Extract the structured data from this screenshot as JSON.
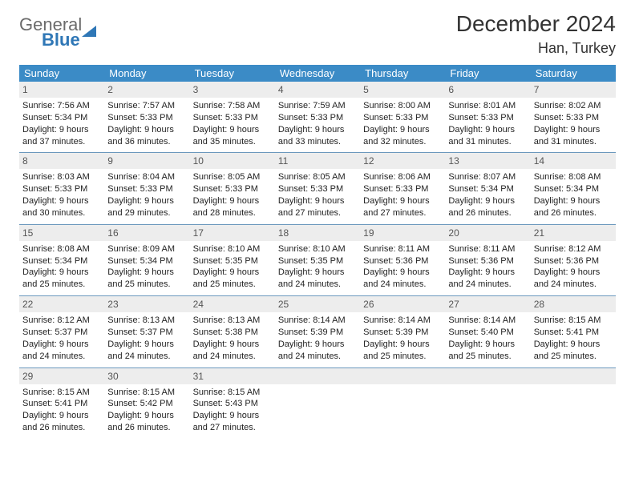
{
  "logo": {
    "line1": "General",
    "line2": "Blue"
  },
  "title": "December 2024",
  "location": "Han, Turkey",
  "colors": {
    "header_bg": "#3b8bc6",
    "header_text": "#ffffff",
    "daynum_bg": "#ededed",
    "daynum_text": "#555555",
    "body_text": "#232323",
    "rule": "#6a98bd",
    "logo_gray": "#6b6b6b",
    "logo_blue": "#2f77b6"
  },
  "dow": [
    "Sunday",
    "Monday",
    "Tuesday",
    "Wednesday",
    "Thursday",
    "Friday",
    "Saturday"
  ],
  "weeks": [
    [
      {
        "n": "1",
        "sr": "Sunrise: 7:56 AM",
        "ss": "Sunset: 5:34 PM",
        "d1": "Daylight: 9 hours",
        "d2": "and 37 minutes."
      },
      {
        "n": "2",
        "sr": "Sunrise: 7:57 AM",
        "ss": "Sunset: 5:33 PM",
        "d1": "Daylight: 9 hours",
        "d2": "and 36 minutes."
      },
      {
        "n": "3",
        "sr": "Sunrise: 7:58 AM",
        "ss": "Sunset: 5:33 PM",
        "d1": "Daylight: 9 hours",
        "d2": "and 35 minutes."
      },
      {
        "n": "4",
        "sr": "Sunrise: 7:59 AM",
        "ss": "Sunset: 5:33 PM",
        "d1": "Daylight: 9 hours",
        "d2": "and 33 minutes."
      },
      {
        "n": "5",
        "sr": "Sunrise: 8:00 AM",
        "ss": "Sunset: 5:33 PM",
        "d1": "Daylight: 9 hours",
        "d2": "and 32 minutes."
      },
      {
        "n": "6",
        "sr": "Sunrise: 8:01 AM",
        "ss": "Sunset: 5:33 PM",
        "d1": "Daylight: 9 hours",
        "d2": "and 31 minutes."
      },
      {
        "n": "7",
        "sr": "Sunrise: 8:02 AM",
        "ss": "Sunset: 5:33 PM",
        "d1": "Daylight: 9 hours",
        "d2": "and 31 minutes."
      }
    ],
    [
      {
        "n": "8",
        "sr": "Sunrise: 8:03 AM",
        "ss": "Sunset: 5:33 PM",
        "d1": "Daylight: 9 hours",
        "d2": "and 30 minutes."
      },
      {
        "n": "9",
        "sr": "Sunrise: 8:04 AM",
        "ss": "Sunset: 5:33 PM",
        "d1": "Daylight: 9 hours",
        "d2": "and 29 minutes."
      },
      {
        "n": "10",
        "sr": "Sunrise: 8:05 AM",
        "ss": "Sunset: 5:33 PM",
        "d1": "Daylight: 9 hours",
        "d2": "and 28 minutes."
      },
      {
        "n": "11",
        "sr": "Sunrise: 8:05 AM",
        "ss": "Sunset: 5:33 PM",
        "d1": "Daylight: 9 hours",
        "d2": "and 27 minutes."
      },
      {
        "n": "12",
        "sr": "Sunrise: 8:06 AM",
        "ss": "Sunset: 5:33 PM",
        "d1": "Daylight: 9 hours",
        "d2": "and 27 minutes."
      },
      {
        "n": "13",
        "sr": "Sunrise: 8:07 AM",
        "ss": "Sunset: 5:34 PM",
        "d1": "Daylight: 9 hours",
        "d2": "and 26 minutes."
      },
      {
        "n": "14",
        "sr": "Sunrise: 8:08 AM",
        "ss": "Sunset: 5:34 PM",
        "d1": "Daylight: 9 hours",
        "d2": "and 26 minutes."
      }
    ],
    [
      {
        "n": "15",
        "sr": "Sunrise: 8:08 AM",
        "ss": "Sunset: 5:34 PM",
        "d1": "Daylight: 9 hours",
        "d2": "and 25 minutes."
      },
      {
        "n": "16",
        "sr": "Sunrise: 8:09 AM",
        "ss": "Sunset: 5:34 PM",
        "d1": "Daylight: 9 hours",
        "d2": "and 25 minutes."
      },
      {
        "n": "17",
        "sr": "Sunrise: 8:10 AM",
        "ss": "Sunset: 5:35 PM",
        "d1": "Daylight: 9 hours",
        "d2": "and 25 minutes."
      },
      {
        "n": "18",
        "sr": "Sunrise: 8:10 AM",
        "ss": "Sunset: 5:35 PM",
        "d1": "Daylight: 9 hours",
        "d2": "and 24 minutes."
      },
      {
        "n": "19",
        "sr": "Sunrise: 8:11 AM",
        "ss": "Sunset: 5:36 PM",
        "d1": "Daylight: 9 hours",
        "d2": "and 24 minutes."
      },
      {
        "n": "20",
        "sr": "Sunrise: 8:11 AM",
        "ss": "Sunset: 5:36 PM",
        "d1": "Daylight: 9 hours",
        "d2": "and 24 minutes."
      },
      {
        "n": "21",
        "sr": "Sunrise: 8:12 AM",
        "ss": "Sunset: 5:36 PM",
        "d1": "Daylight: 9 hours",
        "d2": "and 24 minutes."
      }
    ],
    [
      {
        "n": "22",
        "sr": "Sunrise: 8:12 AM",
        "ss": "Sunset: 5:37 PM",
        "d1": "Daylight: 9 hours",
        "d2": "and 24 minutes."
      },
      {
        "n": "23",
        "sr": "Sunrise: 8:13 AM",
        "ss": "Sunset: 5:37 PM",
        "d1": "Daylight: 9 hours",
        "d2": "and 24 minutes."
      },
      {
        "n": "24",
        "sr": "Sunrise: 8:13 AM",
        "ss": "Sunset: 5:38 PM",
        "d1": "Daylight: 9 hours",
        "d2": "and 24 minutes."
      },
      {
        "n": "25",
        "sr": "Sunrise: 8:14 AM",
        "ss": "Sunset: 5:39 PM",
        "d1": "Daylight: 9 hours",
        "d2": "and 24 minutes."
      },
      {
        "n": "26",
        "sr": "Sunrise: 8:14 AM",
        "ss": "Sunset: 5:39 PM",
        "d1": "Daylight: 9 hours",
        "d2": "and 25 minutes."
      },
      {
        "n": "27",
        "sr": "Sunrise: 8:14 AM",
        "ss": "Sunset: 5:40 PM",
        "d1": "Daylight: 9 hours",
        "d2": "and 25 minutes."
      },
      {
        "n": "28",
        "sr": "Sunrise: 8:15 AM",
        "ss": "Sunset: 5:41 PM",
        "d1": "Daylight: 9 hours",
        "d2": "and 25 minutes."
      }
    ],
    [
      {
        "n": "29",
        "sr": "Sunrise: 8:15 AM",
        "ss": "Sunset: 5:41 PM",
        "d1": "Daylight: 9 hours",
        "d2": "and 26 minutes."
      },
      {
        "n": "30",
        "sr": "Sunrise: 8:15 AM",
        "ss": "Sunset: 5:42 PM",
        "d1": "Daylight: 9 hours",
        "d2": "and 26 minutes."
      },
      {
        "n": "31",
        "sr": "Sunrise: 8:15 AM",
        "ss": "Sunset: 5:43 PM",
        "d1": "Daylight: 9 hours",
        "d2": "and 27 minutes."
      },
      {
        "n": "",
        "sr": "",
        "ss": "",
        "d1": "",
        "d2": ""
      },
      {
        "n": "",
        "sr": "",
        "ss": "",
        "d1": "",
        "d2": ""
      },
      {
        "n": "",
        "sr": "",
        "ss": "",
        "d1": "",
        "d2": ""
      },
      {
        "n": "",
        "sr": "",
        "ss": "",
        "d1": "",
        "d2": ""
      }
    ]
  ]
}
